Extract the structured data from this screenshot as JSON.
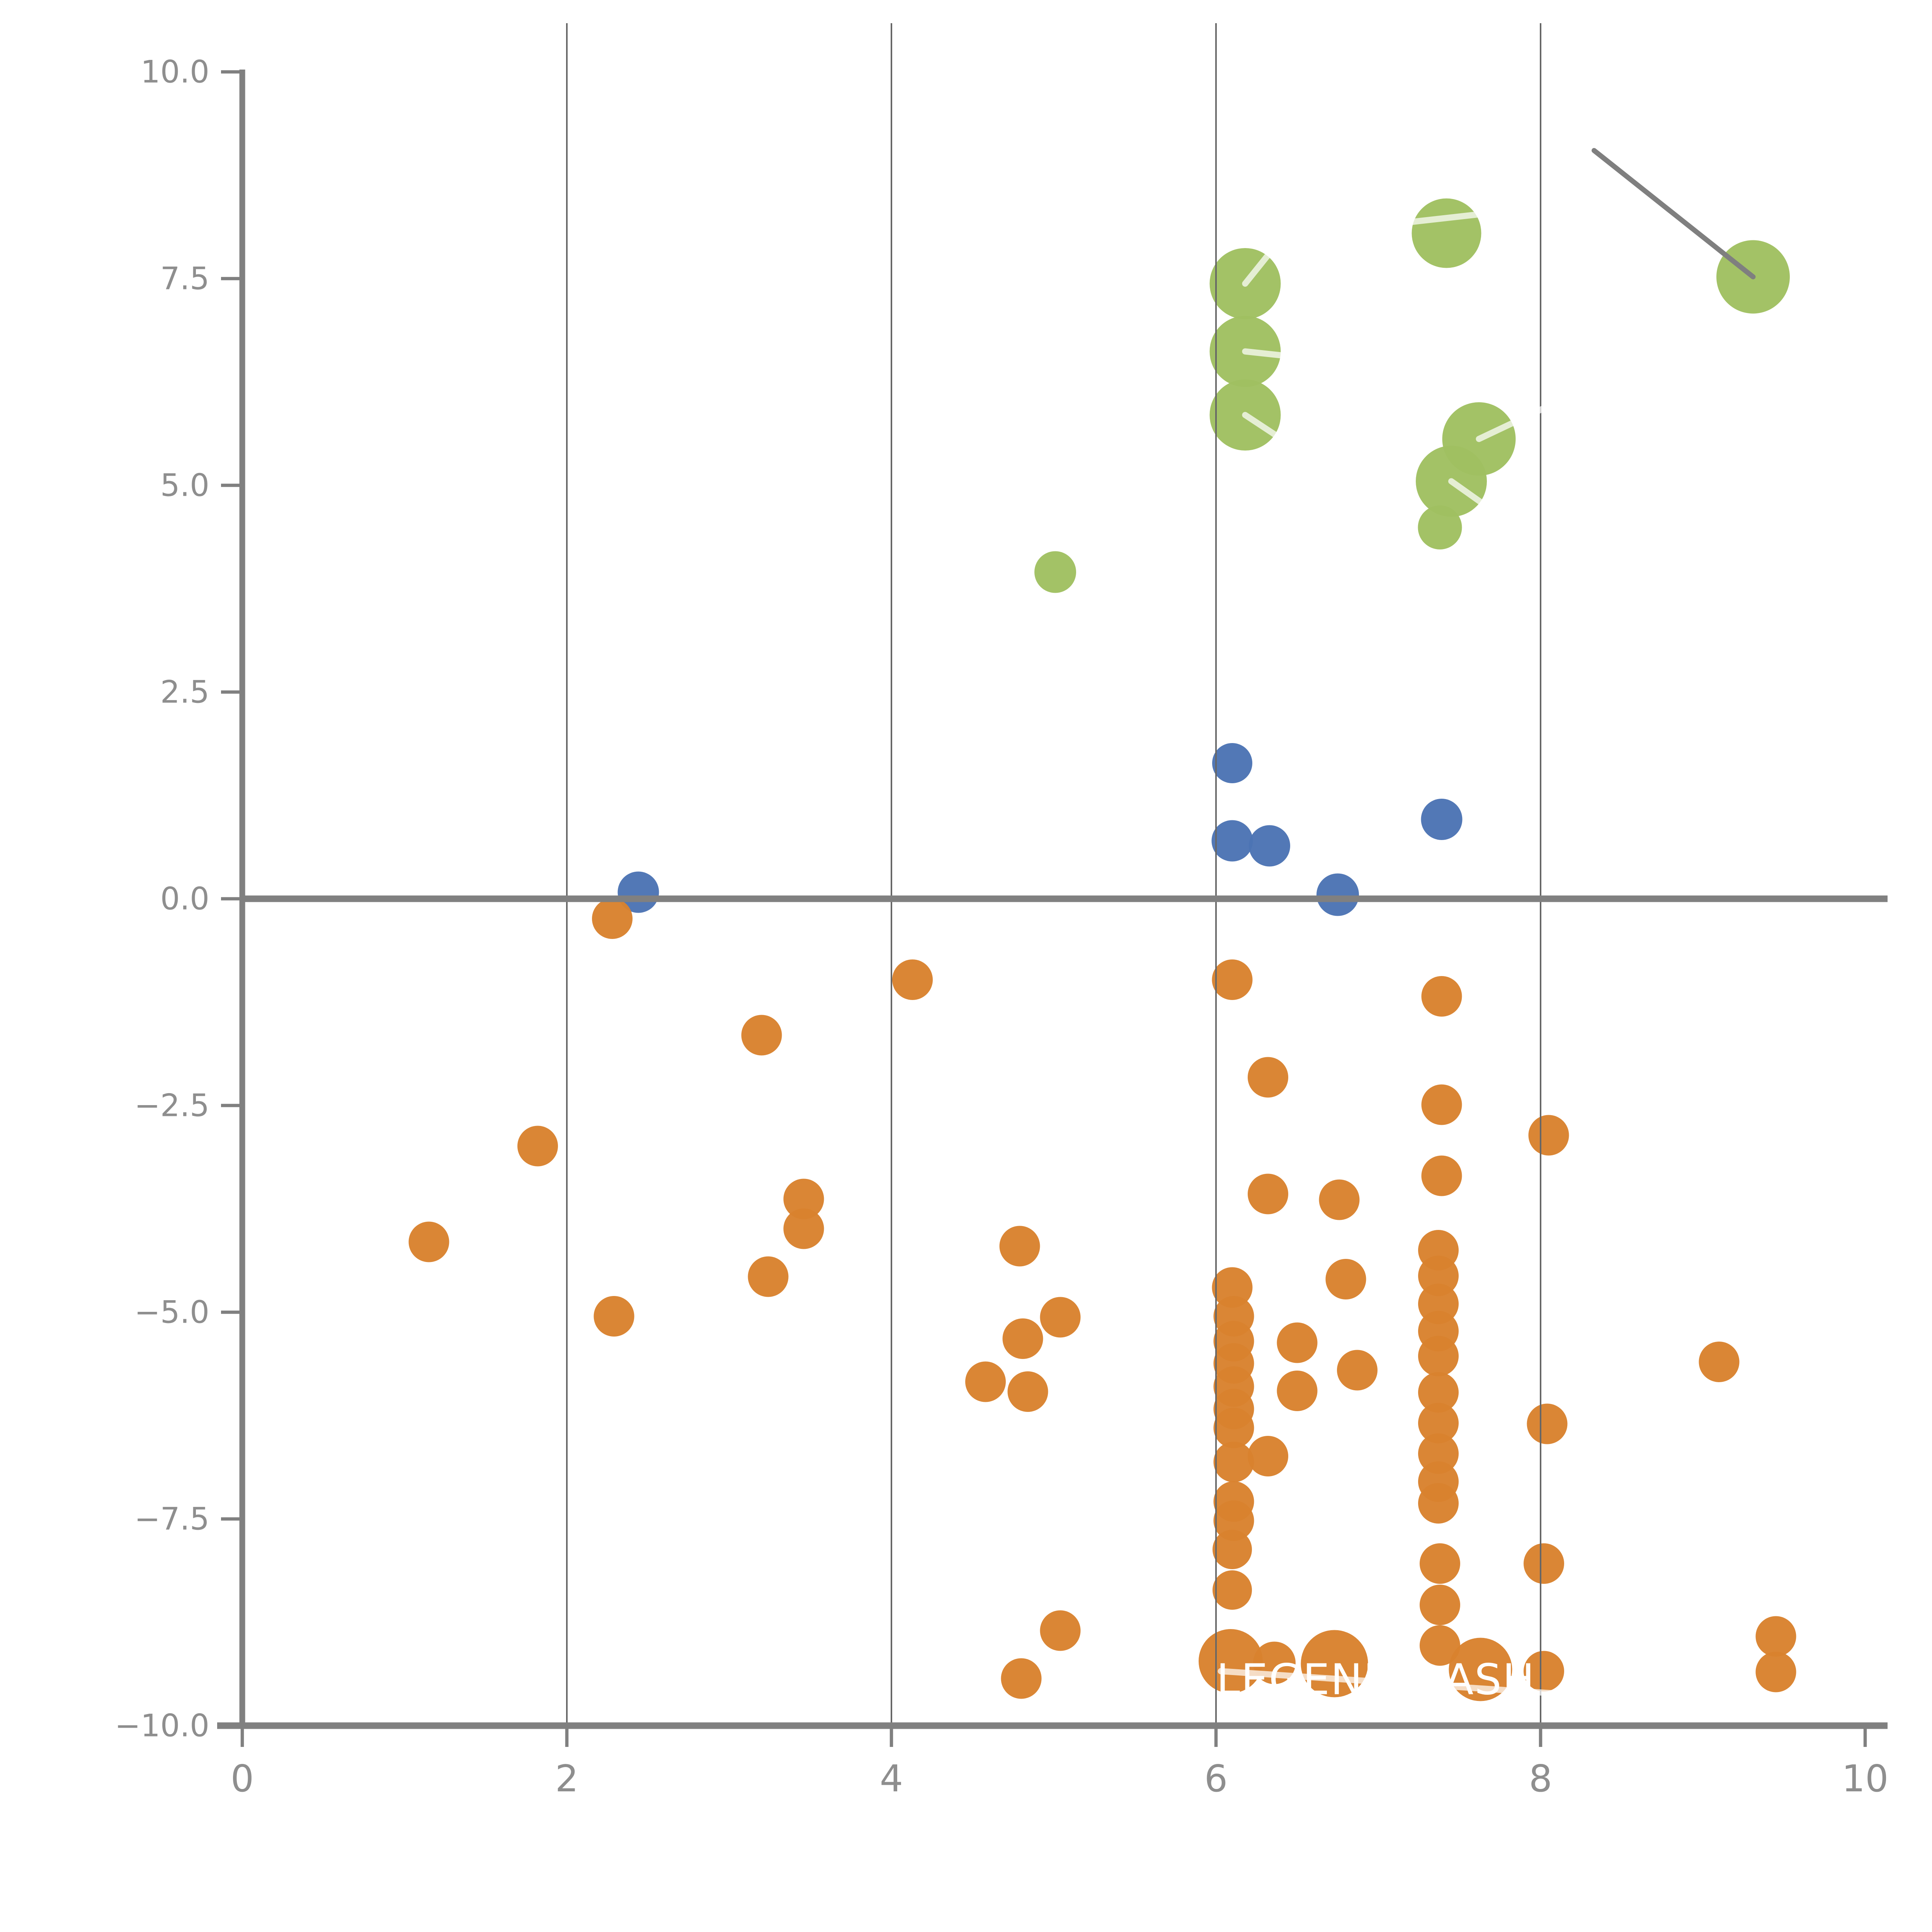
{
  "chart_data": {
    "type": "scatter",
    "title": "",
    "xlabel": "",
    "ylabel": "",
    "xlim": [
      0,
      10
    ],
    "ylim": [
      -10.0,
      10.0
    ],
    "grid": "vertical-only",
    "x_gridlines": [
      2,
      4,
      6,
      8
    ],
    "x_ticks": [
      {
        "v": 0,
        "label": "0"
      },
      {
        "v": 2,
        "label": "2"
      },
      {
        "v": 4,
        "label": "4"
      },
      {
        "v": 6,
        "label": "6"
      },
      {
        "v": 8,
        "label": "8"
      },
      {
        "v": 10,
        "label": "10"
      }
    ],
    "y_ticks": [
      {
        "v": 10,
        "label": "10.0"
      },
      {
        "v": 7.5,
        "label": "7.5"
      },
      {
        "v": 5,
        "label": "5.0"
      },
      {
        "v": 2.5,
        "label": "2.5"
      },
      {
        "v": 0,
        "label": "0.0"
      },
      {
        "v": -2.5,
        "label": "−2.5"
      },
      {
        "v": -5,
        "label": "−5.0"
      },
      {
        "v": -7.5,
        "label": "−7.5"
      },
      {
        "v": -10,
        "label": "−10.0"
      }
    ],
    "series": [
      {
        "name": "green",
        "color": "#a0c061",
        "points": [
          {
            "x": 6.18,
            "y": 7.44,
            "r": 18.4
          },
          {
            "x": 6.18,
            "y": 6.62,
            "r": 18.4
          },
          {
            "x": 6.18,
            "y": 5.85,
            "r": 18.4
          },
          {
            "x": 7.42,
            "y": 8.05,
            "r": 18.0
          },
          {
            "x": 9.31,
            "y": 7.52,
            "r": 19.0
          },
          {
            "x": 7.62,
            "y": 5.56,
            "r": 19.0
          },
          {
            "x": 7.45,
            "y": 5.05,
            "r": 18.4
          },
          {
            "x": 7.38,
            "y": 4.49,
            "r": 11.4
          },
          {
            "x": 5.01,
            "y": 3.95,
            "r": 10.8
          }
        ]
      },
      {
        "name": "blue",
        "color": "#4c74b4",
        "points": [
          {
            "x": 2.44,
            "y": 0.08,
            "r": 10.7
          },
          {
            "x": 6.1,
            "y": 1.64,
            "r": 10.4
          },
          {
            "x": 6.1,
            "y": 0.7,
            "r": 10.7
          },
          {
            "x": 6.33,
            "y": 0.64,
            "r": 10.7
          },
          {
            "x": 7.39,
            "y": 0.96,
            "r": 10.7
          },
          {
            "x": 6.75,
            "y": 0.05,
            "r": 11.0
          }
        ]
      },
      {
        "name": "orange",
        "color": "#d9822e",
        "points": [
          {
            "x": 2.28,
            "y": -0.24,
            "r": 10.5
          },
          {
            "x": 4.13,
            "y": -0.98,
            "r": 10.5
          },
          {
            "x": 3.2,
            "y": -1.65,
            "r": 10.5
          },
          {
            "x": 6.1,
            "y": -0.98,
            "r": 10.5
          },
          {
            "x": 7.39,
            "y": -1.18,
            "r": 10.5
          },
          {
            "x": 6.32,
            "y": -2.16,
            "r": 10.5
          },
          {
            "x": 7.39,
            "y": -2.49,
            "r": 10.5
          },
          {
            "x": 1.82,
            "y": -2.99,
            "r": 10.5
          },
          {
            "x": 8.05,
            "y": -2.86,
            "r": 10.5
          },
          {
            "x": 7.39,
            "y": -3.35,
            "r": 10.5
          },
          {
            "x": 6.32,
            "y": -3.57,
            "r": 10.5
          },
          {
            "x": 6.76,
            "y": -3.64,
            "r": 10.5
          },
          {
            "x": 3.46,
            "y": -3.63,
            "r": 10.5
          },
          {
            "x": 3.46,
            "y": -3.99,
            "r": 10.5
          },
          {
            "x": 4.79,
            "y": -4.2,
            "r": 10.5
          },
          {
            "x": 1.15,
            "y": -4.15,
            "r": 10.5
          },
          {
            "x": 3.24,
            "y": -4.57,
            "r": 10.5
          },
          {
            "x": 6.8,
            "y": -4.6,
            "r": 10.5
          },
          {
            "x": 6.1,
            "y": -4.7,
            "r": 10.5
          },
          {
            "x": 6.11,
            "y": -5.05,
            "r": 10.5
          },
          {
            "x": 6.11,
            "y": -5.35,
            "r": 10.5
          },
          {
            "x": 6.11,
            "y": -5.62,
            "r": 10.5
          },
          {
            "x": 6.11,
            "y": -5.9,
            "r": 10.5
          },
          {
            "x": 6.11,
            "y": -6.17,
            "r": 10.5
          },
          {
            "x": 6.11,
            "y": -6.4,
            "r": 10.5
          },
          {
            "x": 6.5,
            "y": -5.37,
            "r": 10.5
          },
          {
            "x": 6.5,
            "y": -5.95,
            "r": 10.5
          },
          {
            "x": 5.04,
            "y": -5.06,
            "r": 10.5
          },
          {
            "x": 2.29,
            "y": -5.05,
            "r": 10.5
          },
          {
            "x": 4.81,
            "y": -5.32,
            "r": 10.5
          },
          {
            "x": 6.87,
            "y": -5.7,
            "r": 10.5
          },
          {
            "x": 4.58,
            "y": -5.84,
            "r": 10.5
          },
          {
            "x": 4.84,
            "y": -5.96,
            "r": 10.5
          },
          {
            "x": 9.1,
            "y": -5.6,
            "r": 10.5
          },
          {
            "x": 7.37,
            "y": -4.25,
            "r": 10.5
          },
          {
            "x": 7.37,
            "y": -4.56,
            "r": 10.5
          },
          {
            "x": 7.37,
            "y": -4.9,
            "r": 10.5
          },
          {
            "x": 7.37,
            "y": -5.23,
            "r": 10.5
          },
          {
            "x": 7.37,
            "y": -5.53,
            "r": 10.5
          },
          {
            "x": 7.37,
            "y": -5.97,
            "r": 10.5
          },
          {
            "x": 7.37,
            "y": -6.34,
            "r": 10.5
          },
          {
            "x": 7.37,
            "y": -6.71,
            "r": 10.5
          },
          {
            "x": 7.37,
            "y": -7.05,
            "r": 10.5
          },
          {
            "x": 7.37,
            "y": -7.31,
            "r": 10.5
          },
          {
            "x": 8.04,
            "y": -6.35,
            "r": 10.5
          },
          {
            "x": 6.11,
            "y": -6.81,
            "r": 10.5
          },
          {
            "x": 6.32,
            "y": -6.74,
            "r": 10.5
          },
          {
            "x": 6.11,
            "y": -7.29,
            "r": 10.5
          },
          {
            "x": 6.11,
            "y": -7.52,
            "r": 10.5
          },
          {
            "x": 6.1,
            "y": -7.87,
            "r": 10.2
          },
          {
            "x": 6.1,
            "y": -8.36,
            "r": 10.2
          },
          {
            "x": 7.38,
            "y": -8.04,
            "r": 10.5
          },
          {
            "x": 7.38,
            "y": -8.54,
            "r": 10.5
          },
          {
            "x": 7.38,
            "y": -9.03,
            "r": 10.5
          },
          {
            "x": 8.02,
            "y": -8.04,
            "r": 10.5
          },
          {
            "x": 8.02,
            "y": -9.34,
            "r": 10.5
          },
          {
            "x": 5.04,
            "y": -8.85,
            "r": 10.5
          },
          {
            "x": 4.8,
            "y": -9.43,
            "r": 10.5
          },
          {
            "x": 6.09,
            "y": -9.22,
            "r": 16.6
          },
          {
            "x": 6.36,
            "y": -9.24,
            "r": 11.0
          },
          {
            "x": 6.73,
            "y": -9.25,
            "r": 17.4
          },
          {
            "x": 7.63,
            "y": -9.32,
            "r": 16.4
          },
          {
            "x": 9.45,
            "y": -8.92,
            "r": 10.5
          },
          {
            "x": 9.45,
            "y": -9.35,
            "r": 10.5
          }
        ]
      }
    ],
    "annotations": {
      "gray_leader_line": {
        "x1": 8.33,
        "y1": 9.05,
        "x2": 9.31,
        "y2": 7.52,
        "color": "#7f7f7f"
      },
      "white_leader_lines": [
        {
          "x1": 6.18,
          "y1": 7.44,
          "x2": 6.45,
          "y2": 8.1
        },
        {
          "x1": 6.18,
          "y1": 6.62,
          "x2": 6.74,
          "y2": 6.5
        },
        {
          "x1": 6.18,
          "y1": 5.85,
          "x2": 6.62,
          "y2": 5.28
        },
        {
          "x1": 7.18,
          "y1": 8.18,
          "x2": 7.72,
          "y2": 8.3
        },
        {
          "x1": 7.62,
          "y1": 5.56,
          "x2": 8.07,
          "y2": 5.98
        },
        {
          "x1": 7.45,
          "y1": 5.05,
          "x2": 7.88,
          "y2": 4.45
        },
        {
          "x1": 6.03,
          "y1": -9.34,
          "x2": 8.39,
          "y2": -9.65
        }
      ],
      "watermark_text": {
        "text": "LEGEND DASH",
        "color": "#ffffff",
        "x": 6.05,
        "y": -9.62
      }
    },
    "colors": {
      "axis": "#808080",
      "gridline": "#666666",
      "tick_label": "#8e8e8e",
      "background": "#ffffff"
    }
  }
}
